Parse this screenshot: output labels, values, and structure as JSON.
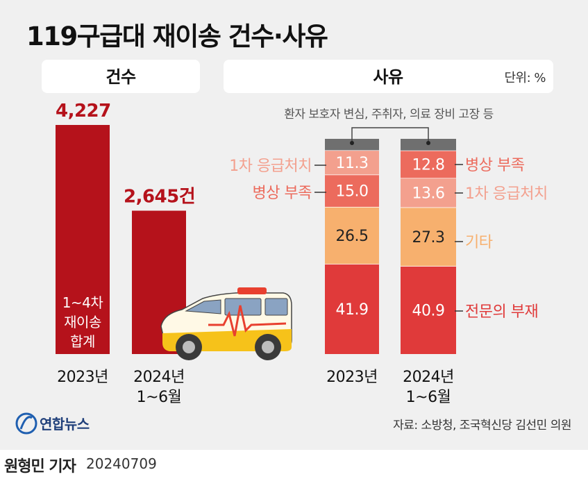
{
  "title": "119구급대 재이송 건수·사유",
  "left_panel": {
    "header": "건수"
  },
  "right_panel": {
    "header": "사유",
    "unit": "단위: %"
  },
  "chart_data": [
    {
      "type": "bar",
      "title": "건수",
      "categories": [
        "2023년",
        "2024년 1~6월"
      ],
      "values": [
        4227,
        2645
      ],
      "value_labels": [
        "4,227",
        "2,645건"
      ],
      "bar_note": "1~4차 재이송 합계",
      "color": "#b5121b"
    },
    {
      "type": "bar",
      "stacked": true,
      "title": "사유",
      "unit": "단위: %",
      "categories": [
        "2023년",
        "2024년 1~6월"
      ],
      "top_note": "환자 보호자 변심, 주취자, 의료 장비 고장 등",
      "series_2023": [
        {
          "name": "전문의 부재",
          "value": 41.9,
          "color": "#e03a3a"
        },
        {
          "name": "기타",
          "value": 26.5,
          "color": "#f7b06e"
        },
        {
          "name": "병상 부족",
          "value": 15.0,
          "color": "#ec6b5d"
        },
        {
          "name": "1차 응급처치",
          "value": 11.3,
          "color": "#f3a08e"
        },
        {
          "name": "",
          "value": 5.3,
          "color": "#6f6f6f"
        }
      ],
      "series_2024": [
        {
          "name": "전문의 부재",
          "value": 40.9,
          "color": "#e03a3a"
        },
        {
          "name": "기타",
          "value": 27.3,
          "color": "#f7b06e"
        },
        {
          "name": "1차 응급처치",
          "value": 13.6,
          "color": "#f3a08e"
        },
        {
          "name": "병상 부족",
          "value": 12.8,
          "color": "#ec6b5d"
        },
        {
          "name": "",
          "value": 5.4,
          "color": "#6f6f6f"
        }
      ],
      "left_labels": [
        "1차 응급처치",
        "병상 부족"
      ],
      "right_labels": [
        "병상 부족",
        "1차 응급처치",
        "기타",
        "전문의 부재"
      ],
      "left_label_colors": [
        "#f3a08e",
        "#ec6b5d"
      ],
      "right_label_colors": [
        "#ec6b5d",
        "#f3a08e",
        "#f7b06e",
        "#e03a3a"
      ]
    }
  ],
  "logo": "연합뉴스",
  "source": "자료: 소방청, 조국혁신당 김선민 의원",
  "byline": "원형민 기자",
  "date": "20240709",
  "icons": [
    "ambulance-icon",
    "yonhap-logo-icon"
  ]
}
